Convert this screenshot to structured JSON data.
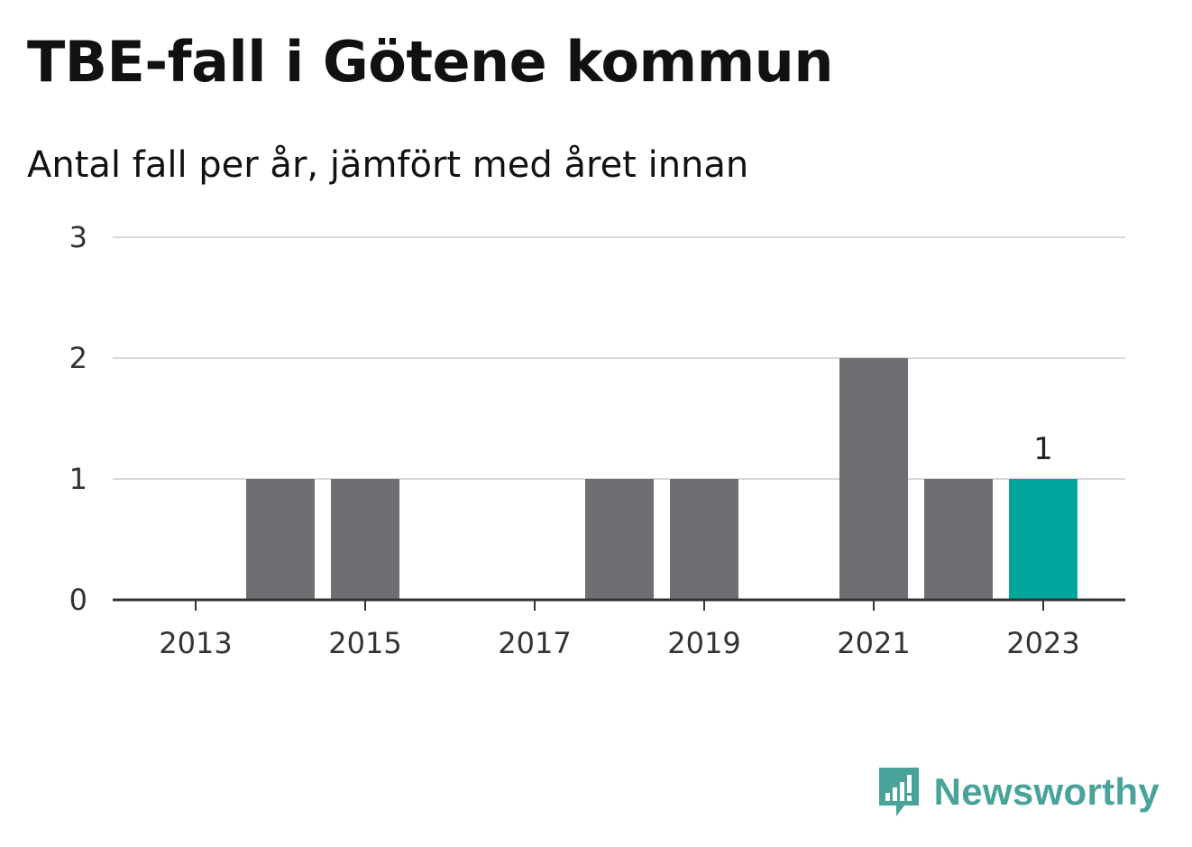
{
  "title": "TBE-fall i Götene kommun",
  "subtitle": "Antal fall per år, jämfört med året innan",
  "brand": {
    "name": "Newsworthy",
    "color": "#4aa39a",
    "icon": "bar-chart-speech-bubble-icon"
  },
  "colors": {
    "bar": "#6f6e73",
    "highlight": "#00a59b",
    "grid": "#d9d9d9",
    "axis": "#333333"
  },
  "chart_data": {
    "type": "bar",
    "title": "TBE-fall i Götene kommun",
    "subtitle": "Antal fall per år, jämfört med året innan",
    "categories": [
      2013,
      2014,
      2015,
      2016,
      2017,
      2018,
      2019,
      2020,
      2021,
      2022,
      2023
    ],
    "values": [
      0,
      1,
      1,
      0,
      0,
      1,
      1,
      0,
      2,
      1,
      1
    ],
    "highlight_category": 2023,
    "value_labels": [
      {
        "category": 2023,
        "text": "1"
      }
    ],
    "x_tick_labels": [
      "2013",
      "2015",
      "2017",
      "2019",
      "2021",
      "2023"
    ],
    "y_tick_labels": [
      "0",
      "1",
      "2",
      "3"
    ],
    "ylim": [
      0,
      3
    ],
    "grid": true,
    "legend": "none",
    "xlabel": "",
    "ylabel": ""
  }
}
